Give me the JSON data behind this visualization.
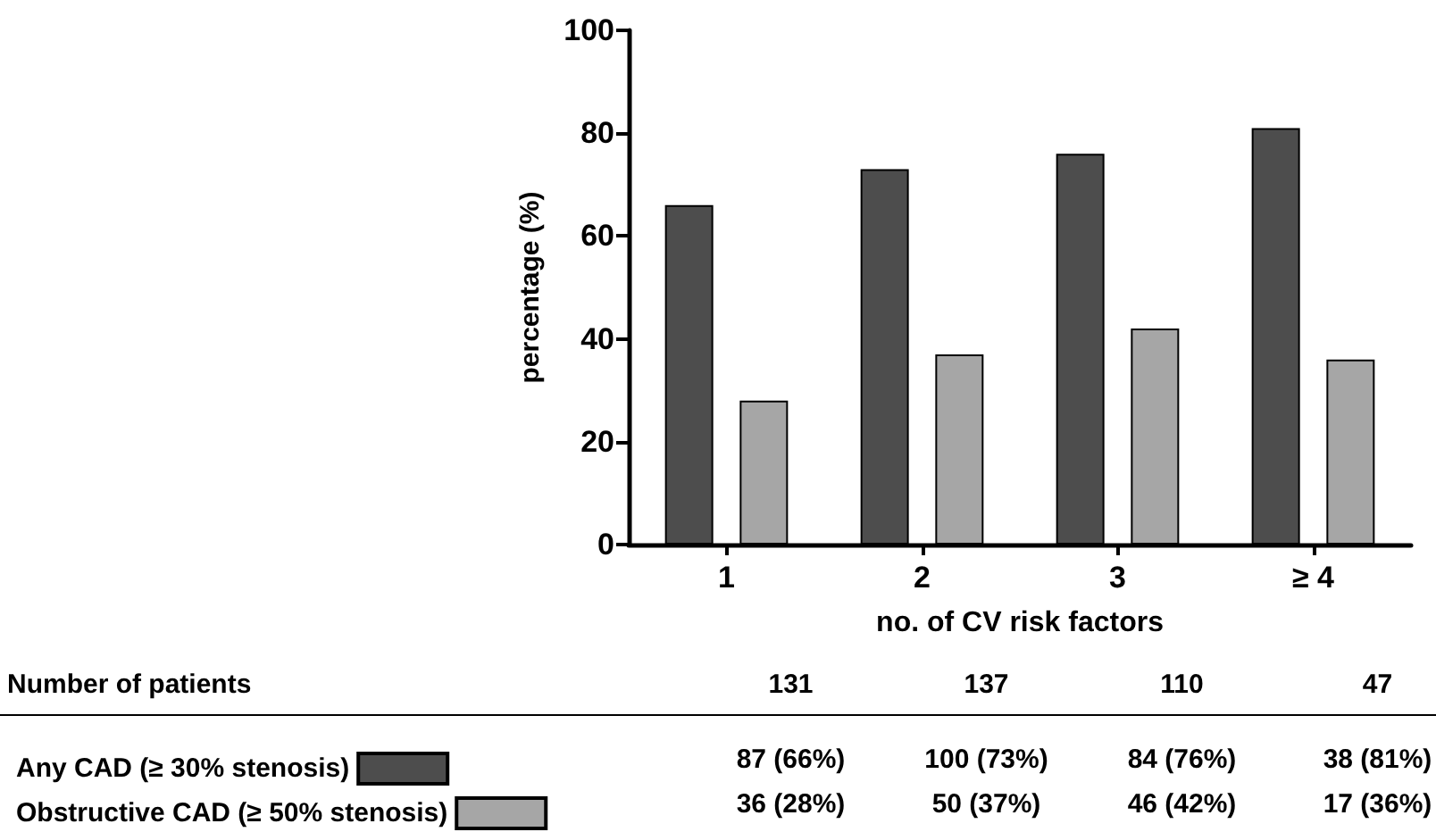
{
  "chart_data": {
    "type": "bar",
    "ylabel": "percentage (%)",
    "xlabel": "no. of CV risk factors",
    "categories": [
      "1",
      "2",
      "3",
      "≥ 4"
    ],
    "series": [
      {
        "name": "Any CAD (≥ 30% stenosis)",
        "color": "#4d4d4d",
        "values": [
          66,
          73,
          76,
          81
        ],
        "value_labels": [
          "87 (66%)",
          "100 (73%)",
          "84 (76%)",
          "38 (81%)"
        ]
      },
      {
        "name": "Obstructive CAD (≥ 50% stenosis)",
        "color": "#a6a6a6",
        "values": [
          28,
          37,
          42,
          36
        ],
        "value_labels": [
          "36 (28%)",
          "50 (37%)",
          "46 (42%)",
          "17 (36%)"
        ]
      }
    ],
    "ylim": [
      0,
      100
    ],
    "yticks": [
      0,
      20,
      40,
      60,
      80,
      100
    ],
    "grid": false,
    "legend": "bottom left",
    "annotations": [
      "Number of patients",
      "131",
      "137",
      "110",
      "47"
    ]
  }
}
